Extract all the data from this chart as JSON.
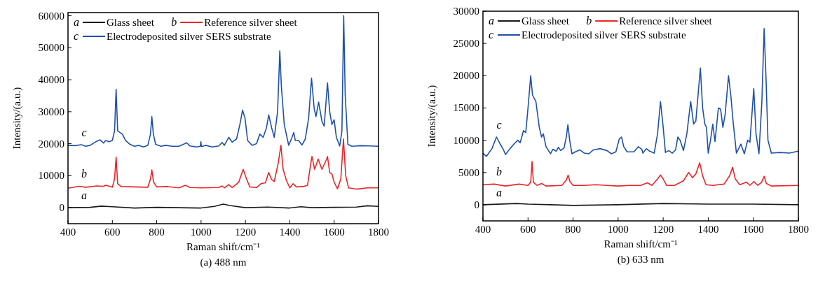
{
  "chart_data": [
    {
      "type": "line",
      "title": "(a) 488 nm",
      "xlabel": "Raman shift/cm⁻¹",
      "ylabel": "Intensity/(a.u.)",
      "xlim": [
        400,
        1800
      ],
      "xticks": [
        400,
        600,
        800,
        1000,
        1200,
        1400,
        1600,
        1800
      ],
      "ylim": [
        -5000,
        61000
      ],
      "yticks": [
        0,
        10000,
        20000,
        30000,
        40000,
        50000,
        60000
      ],
      "grid": false,
      "legend": "top left",
      "line_style": "solid",
      "marker": "none",
      "annotations": [
        "a",
        "b",
        "c"
      ],
      "series": [
        {
          "name": "Glass sheet",
          "color": "#1a1a1a",
          "x": [
            400,
            500,
            550,
            600,
            700,
            800,
            900,
            1000,
            1060,
            1100,
            1130,
            1200,
            1300,
            1400,
            1450,
            1500,
            1600,
            1700,
            1750,
            1800
          ],
          "values": [
            0,
            100,
            500,
            300,
            -100,
            100,
            0,
            -100,
            400,
            1100,
            700,
            0,
            200,
            -100,
            300,
            0,
            100,
            200,
            600,
            400
          ]
        },
        {
          "name": "Reference silver sheet",
          "color": "#e8262a",
          "x": [
            400,
            450,
            480,
            530,
            560,
            570,
            600,
            610,
            617,
            624,
            640,
            700,
            760,
            772,
            778,
            786,
            800,
            850,
            900,
            930,
            950,
            1000,
            1080,
            1095,
            1105,
            1125,
            1140,
            1170,
            1190,
            1205,
            1220,
            1250,
            1270,
            1290,
            1305,
            1318,
            1330,
            1348,
            1360,
            1370,
            1385,
            1400,
            1415,
            1430,
            1460,
            1480,
            1495,
            1500,
            1512,
            1528,
            1545,
            1565,
            1570,
            1580,
            1590,
            1600,
            1615,
            1630,
            1642,
            1652,
            1665,
            1700,
            1750,
            1800
          ],
          "values": [
            6100,
            6700,
            6400,
            6800,
            6700,
            7000,
            6400,
            9000,
            15800,
            7500,
            6600,
            6500,
            6400,
            9000,
            11800,
            8000,
            6500,
            6600,
            6200,
            7000,
            6300,
            6200,
            6300,
            6800,
            6200,
            7200,
            6300,
            8000,
            12000,
            9000,
            6500,
            6300,
            7500,
            7800,
            11000,
            8800,
            8200,
            14000,
            19500,
            12000,
            8500,
            6200,
            7500,
            6500,
            6600,
            7000,
            14000,
            16000,
            12000,
            15200,
            12000,
            15000,
            16000,
            11000,
            10500,
            8000,
            5900,
            9000,
            21500,
            10000,
            6200,
            5800,
            6200,
            6200
          ]
        },
        {
          "name": "Electrodeposited silver SERS substrate",
          "color": "#1f50a8",
          "x": [
            400,
            430,
            460,
            480,
            500,
            530,
            545,
            560,
            570,
            585,
            600,
            610,
            617,
            624,
            635,
            645,
            660,
            680,
            700,
            720,
            740,
            760,
            772,
            778,
            785,
            795,
            820,
            840,
            870,
            900,
            920,
            935,
            950,
            980,
            997,
            999,
            1002,
            1020,
            1050,
            1080,
            1095,
            1105,
            1125,
            1140,
            1160,
            1175,
            1187,
            1198,
            1210,
            1230,
            1250,
            1265,
            1280,
            1295,
            1305,
            1318,
            1330,
            1345,
            1355,
            1362,
            1375,
            1395,
            1410,
            1418,
            1425,
            1440,
            1455,
            1470,
            1485,
            1498,
            1510,
            1518,
            1530,
            1545,
            1555,
            1570,
            1580,
            1590,
            1600,
            1610,
            1625,
            1635,
            1643,
            1650,
            1662,
            1680,
            1720,
            1760,
            1800
          ],
          "values": [
            19500,
            19400,
            19700,
            19200,
            19500,
            20800,
            21200,
            20200,
            21000,
            20600,
            21000,
            24000,
            37000,
            24000,
            23500,
            23000,
            21000,
            19800,
            19200,
            19500,
            19000,
            19500,
            23000,
            28500,
            23000,
            19800,
            19200,
            19500,
            19200,
            19200,
            19800,
            20300,
            19300,
            19000,
            19200,
            20600,
            19100,
            19500,
            19000,
            19300,
            20400,
            19500,
            22000,
            20500,
            21500,
            26000,
            30500,
            28000,
            21000,
            19500,
            20000,
            23000,
            22000,
            25000,
            29000,
            25000,
            22000,
            30000,
            49000,
            38000,
            26000,
            19500,
            22000,
            23500,
            21000,
            21000,
            19600,
            21500,
            28000,
            40500,
            31000,
            28500,
            33000,
            27000,
            25500,
            39000,
            30000,
            26000,
            27500,
            22000,
            19300,
            24000,
            60000,
            35000,
            19800,
            19200,
            19400,
            19300,
            19200
          ]
        }
      ]
    },
    {
      "type": "line",
      "title": "(b) 633 nm",
      "xlabel": "Raman shift/cm⁻¹",
      "ylabel": "Intensity/(a.u.)",
      "xlim": [
        400,
        1800
      ],
      "xticks": [
        400,
        600,
        800,
        1000,
        1200,
        1400,
        1600,
        1800
      ],
      "ylim": [
        -2500,
        30000
      ],
      "yticks": [
        0,
        5000,
        10000,
        15000,
        20000,
        25000,
        30000
      ],
      "grid": false,
      "legend": "top left",
      "line_style": "solid",
      "marker": "none",
      "annotations": [
        "a",
        "b",
        "c"
      ],
      "series": [
        {
          "name": "Glass sheet",
          "color": "#1a1a1a",
          "x": [
            400,
            550,
            600,
            700,
            800,
            1000,
            1200,
            1400,
            1600,
            1800
          ],
          "values": [
            0,
            200,
            100,
            0,
            -100,
            0,
            200,
            100,
            100,
            0
          ]
        },
        {
          "name": "Reference silver sheet",
          "color": "#e8262a",
          "x": [
            400,
            450,
            500,
            560,
            600,
            612,
            618,
            624,
            640,
            660,
            680,
            750,
            770,
            778,
            786,
            800,
            850,
            900,
            950,
            1000,
            1050,
            1100,
            1130,
            1150,
            1175,
            1188,
            1200,
            1215,
            1250,
            1290,
            1313,
            1330,
            1345,
            1362,
            1375,
            1390,
            1420,
            1470,
            1495,
            1508,
            1520,
            1540,
            1570,
            1585,
            1602,
            1620,
            1637,
            1648,
            1658,
            1680,
            1800
          ],
          "values": [
            3100,
            3200,
            2900,
            3200,
            3000,
            3500,
            6700,
            3500,
            3000,
            3300,
            2900,
            3000,
            3800,
            4600,
            3600,
            3000,
            3000,
            3100,
            3000,
            2900,
            3000,
            3000,
            3400,
            3000,
            4000,
            4600,
            4000,
            3000,
            3000,
            3700,
            5000,
            4200,
            4800,
            6500,
            4500,
            3100,
            3000,
            3200,
            4500,
            5800,
            4000,
            3100,
            3500,
            3000,
            3600,
            3000,
            3500,
            4400,
            3300,
            2900,
            3000
          ]
        },
        {
          "name": "Electrodeposited silver SERS substrate",
          "color": "#1f50a8",
          "x": [
            400,
            415,
            440,
            460,
            475,
            490,
            500,
            520,
            540,
            555,
            565,
            570,
            580,
            590,
            600,
            612,
            620,
            635,
            650,
            660,
            668,
            680,
            700,
            710,
            725,
            735,
            745,
            760,
            770,
            777,
            785,
            795,
            810,
            830,
            850,
            870,
            890,
            920,
            950,
            970,
            990,
            1005,
            1015,
            1025,
            1040,
            1070,
            1090,
            1105,
            1110,
            1125,
            1140,
            1160,
            1175,
            1188,
            1200,
            1210,
            1225,
            1240,
            1255,
            1265,
            1275,
            1290,
            1305,
            1322,
            1335,
            1345,
            1365,
            1375,
            1385,
            1392,
            1400,
            1410,
            1420,
            1430,
            1445,
            1455,
            1465,
            1475,
            1490,
            1500,
            1510,
            1525,
            1545,
            1560,
            1575,
            1585,
            1602,
            1612,
            1625,
            1638,
            1648,
            1656,
            1665,
            1680,
            1720,
            1760,
            1800
          ],
          "values": [
            8000,
            7500,
            8700,
            10500,
            9500,
            8600,
            7800,
            8700,
            9500,
            10000,
            9600,
            10200,
            11500,
            11200,
            15000,
            20000,
            17000,
            16000,
            12000,
            10500,
            11000,
            9000,
            7900,
            8600,
            8300,
            8900,
            8400,
            8800,
            10500,
            12400,
            10000,
            7900,
            8200,
            8500,
            8000,
            7900,
            8500,
            8700,
            8400,
            7900,
            8200,
            10200,
            10500,
            9000,
            8200,
            8200,
            9000,
            8600,
            8000,
            8700,
            8300,
            8000,
            11000,
            16000,
            12000,
            8100,
            8400,
            8000,
            8500,
            10500,
            10000,
            8400,
            11000,
            16000,
            12500,
            13000,
            21200,
            15000,
            12500,
            12000,
            8000,
            10000,
            12500,
            9800,
            15000,
            14800,
            12000,
            14000,
            20000,
            17000,
            13000,
            8000,
            9400,
            7900,
            10000,
            9700,
            18000,
            11000,
            7900,
            16000,
            27300,
            20000,
            10000,
            8000,
            8100,
            8000,
            8300
          ]
        }
      ]
    }
  ]
}
